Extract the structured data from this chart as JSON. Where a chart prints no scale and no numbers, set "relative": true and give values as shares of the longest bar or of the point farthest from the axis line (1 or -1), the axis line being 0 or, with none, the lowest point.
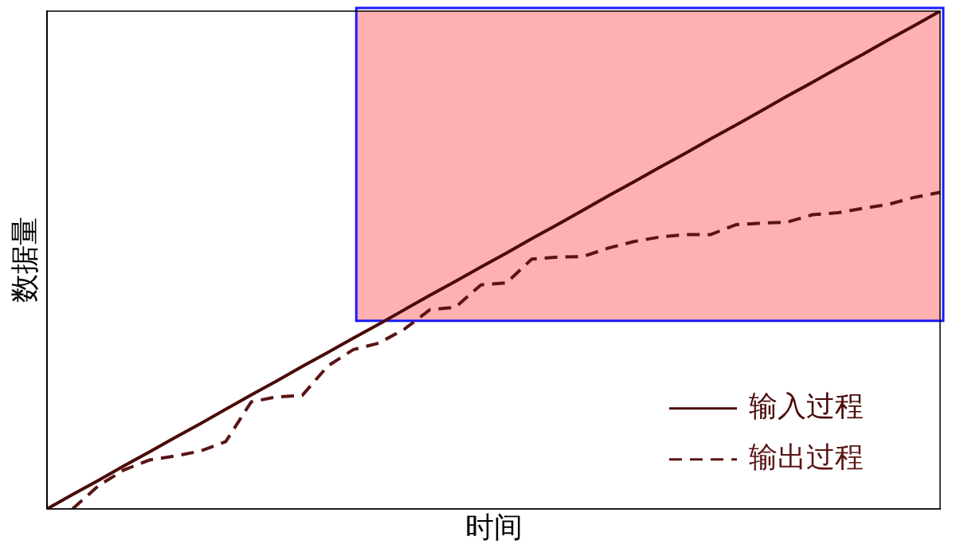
{
  "chart_data": {
    "type": "line",
    "relative": true,
    "xlabel": "时间",
    "ylabel": "数据量",
    "categories": [
      null,
      null,
      null,
      null,
      null,
      null,
      null,
      null,
      null,
      null,
      null,
      null,
      null,
      null,
      null,
      null,
      null,
      null,
      null,
      null,
      null,
      null,
      null,
      null,
      null,
      null,
      null,
      null,
      null,
      null,
      null,
      null,
      null,
      null,
      null,
      null
    ],
    "series": [
      {
        "name": "输入过程",
        "color": "#4a0a0a",
        "line_style": "solid",
        "values": [
          0,
          0.029,
          0.057,
          0.086,
          0.114,
          0.143,
          0.171,
          0.2,
          0.229,
          0.257,
          0.286,
          0.314,
          0.343,
          0.371,
          0.4,
          0.429,
          0.457,
          0.486,
          0.514,
          0.543,
          0.571,
          0.6,
          0.629,
          0.657,
          0.686,
          0.714,
          0.743,
          0.771,
          0.8,
          0.829,
          0.857,
          0.886,
          0.914,
          0.943,
          0.971,
          1
        ]
      },
      {
        "name": "输出过程",
        "color": "#5a1414",
        "line_style": "dashed",
        "values": [
          null,
          0,
          0.046,
          0.078,
          0.098,
          0.106,
          0.116,
          0.135,
          0.215,
          0.225,
          0.228,
          0.287,
          0.32,
          0.333,
          0.361,
          0.4,
          0.405,
          0.45,
          0.454,
          0.502,
          0.506,
          0.507,
          0.524,
          0.537,
          0.546,
          0.551,
          0.551,
          0.571,
          0.574,
          0.576,
          0.591,
          0.595,
          0.604,
          0.612,
          0.626,
          0.636
        ]
      }
    ],
    "bands": [
      {
        "axis": "y",
        "from": 0.378,
        "to": 1,
        "color": "#ffb0b0"
      }
    ],
    "legend": "bottom right",
    "grid": false,
    "marker": "none"
  }
}
